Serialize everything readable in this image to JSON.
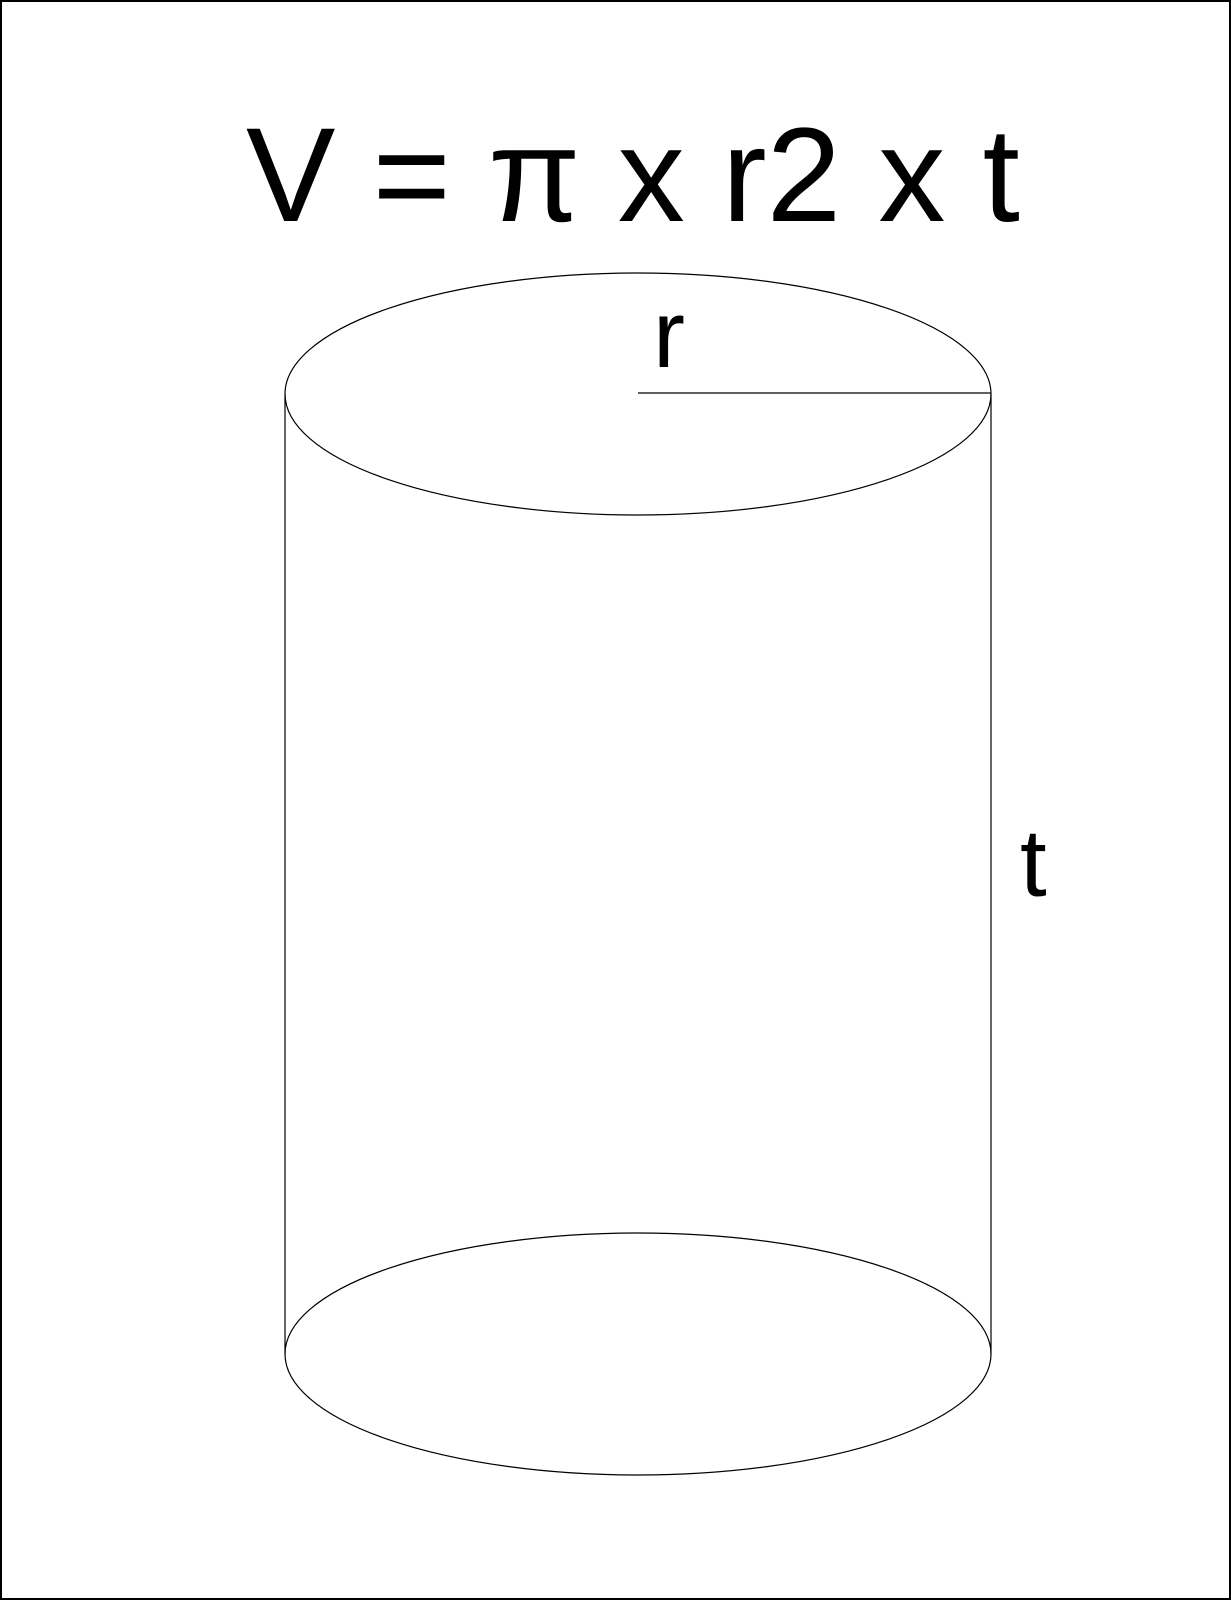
{
  "formula": "V = π x r2 x t",
  "labels": {
    "radius": "r",
    "height": "t"
  },
  "colors": {
    "background": "#ffffff",
    "line": "#000000",
    "text": "#000000"
  }
}
